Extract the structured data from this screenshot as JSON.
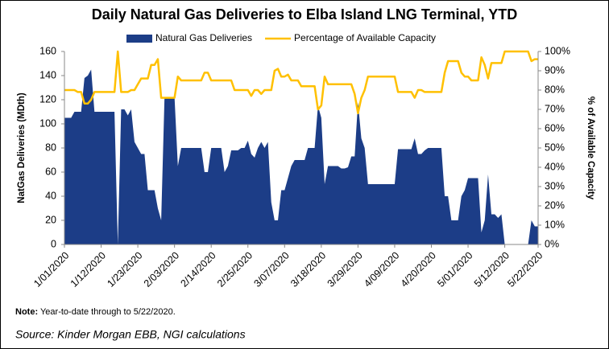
{
  "chart_data": {
    "type": "area-line",
    "title": "Daily Natural Gas Deliveries to Elba Island LNG Terminal, YTD",
    "ylabel": "NatGas Deliveries (MDth)",
    "y2label": "% of Available Capacity",
    "note_label": "Note:",
    "note_text": "Year-to-date through to 5/22/2020.",
    "source": "Source: Kinder Morgan EBB, NGI calculations",
    "categories": [
      "1/01/2020",
      null,
      null,
      null,
      null,
      null,
      null,
      null,
      null,
      null,
      null,
      "1/12/2020",
      null,
      null,
      null,
      null,
      null,
      null,
      null,
      null,
      null,
      null,
      "1/23/2020",
      null,
      null,
      null,
      null,
      null,
      null,
      null,
      null,
      null,
      null,
      "2/03/2020",
      null,
      null,
      null,
      null,
      null,
      null,
      null,
      null,
      null,
      null,
      "2/14/2020",
      null,
      null,
      null,
      null,
      null,
      null,
      null,
      null,
      null,
      null,
      "2/25/2020",
      null,
      null,
      null,
      null,
      null,
      null,
      null,
      null,
      null,
      null,
      "3/07/2020",
      null,
      null,
      null,
      null,
      null,
      null,
      null,
      null,
      null,
      null,
      "3/18/2020",
      null,
      null,
      null,
      null,
      null,
      null,
      null,
      null,
      null,
      null,
      "3/29/2020",
      null,
      null,
      null,
      null,
      null,
      null,
      null,
      null,
      null,
      null,
      "4/09/2020",
      null,
      null,
      null,
      null,
      null,
      null,
      null,
      null,
      null,
      null,
      "4/20/2020",
      null,
      null,
      null,
      null,
      null,
      null,
      null,
      null,
      null,
      null,
      "5/01/2020",
      null,
      null,
      null,
      null,
      null,
      null,
      null,
      null,
      null,
      null,
      "5/12/2020",
      null,
      null,
      null,
      null,
      null,
      null,
      null,
      null,
      null,
      "5/22/2020"
    ],
    "series": [
      {
        "name": "Natural Gas Deliveries",
        "kind": "area",
        "color": "#1c3d87",
        "axis": "y",
        "values": [
          105,
          105,
          105,
          110,
          110,
          110,
          138,
          140,
          145,
          110,
          110,
          110,
          110,
          110,
          110,
          110,
          0,
          112,
          112,
          107,
          112,
          85,
          80,
          75,
          75,
          45,
          45,
          45,
          30,
          20,
          122,
          122,
          122,
          122,
          65,
          80,
          80,
          80,
          80,
          80,
          80,
          80,
          60,
          60,
          80,
          80,
          80,
          80,
          60,
          65,
          78,
          78,
          78,
          80,
          80,
          86,
          75,
          72,
          80,
          85,
          80,
          85,
          35,
          20,
          20,
          45,
          45,
          55,
          65,
          70,
          70,
          70,
          70,
          80,
          80,
          80,
          115,
          105,
          50,
          65,
          65,
          65,
          65,
          63,
          63,
          64,
          73,
          73,
          118,
          88,
          80,
          50,
          50,
          50,
          50,
          50,
          50,
          50,
          50,
          50,
          79,
          79,
          79,
          79,
          79,
          88,
          75,
          75,
          78,
          80,
          80,
          80,
          80,
          80,
          40,
          40,
          20,
          20,
          20,
          40,
          45,
          55,
          55,
          55,
          55,
          10,
          20,
          58,
          25,
          25,
          22,
          25,
          0,
          0,
          0,
          0,
          0,
          0,
          0,
          0,
          20,
          15,
          15
        ]
      },
      {
        "name": "Percentage of Available Capacity",
        "kind": "line",
        "color": "#ffc000",
        "axis": "y2",
        "values": [
          80,
          80,
          80,
          80,
          79,
          79,
          73,
          73,
          75,
          79,
          79,
          79,
          79,
          79,
          79,
          79,
          100,
          79,
          79,
          79,
          80,
          80,
          83,
          86,
          86,
          86,
          93,
          93,
          96,
          76,
          76,
          76,
          76,
          76,
          87,
          85,
          85,
          85,
          85,
          85,
          85,
          85,
          89,
          89,
          85,
          85,
          85,
          85,
          85,
          85,
          85,
          80,
          80,
          80,
          80,
          80,
          77,
          80,
          80,
          78,
          80,
          80,
          80,
          90,
          91,
          87,
          87,
          88,
          85,
          85,
          85,
          82,
          82,
          82,
          82,
          82,
          70,
          72,
          87,
          83,
          83,
          83,
          83,
          83,
          83,
          83,
          83,
          78,
          68,
          76,
          80,
          87,
          87,
          87,
          87,
          87,
          87,
          87,
          87,
          87,
          79,
          79,
          79,
          79,
          79,
          76,
          80,
          80,
          79,
          79,
          79,
          79,
          79,
          79,
          89,
          95,
          95,
          95,
          95,
          89,
          87,
          87,
          85,
          85,
          85,
          97,
          93,
          86,
          94,
          94,
          94,
          94,
          100,
          100,
          100,
          100,
          100,
          100,
          100,
          100,
          95,
          96,
          96
        ]
      }
    ],
    "ylim": [
      0,
      160
    ],
    "yticks": [
      0,
      20,
      40,
      60,
      80,
      100,
      120,
      140,
      160
    ],
    "y2lim": [
      0,
      100
    ],
    "y2ticks": [
      {
        "value": 0,
        "label": "0%"
      },
      {
        "value": 10,
        "label": "10%"
      },
      {
        "value": 20,
        "label": "20%"
      },
      {
        "value": 30,
        "label": "30%"
      },
      {
        "value": 40,
        "label": "40%"
      },
      {
        "value": 50,
        "label": "50%"
      },
      {
        "value": 60,
        "label": "60%"
      },
      {
        "value": 70,
        "label": "70%"
      },
      {
        "value": 80,
        "label": "80%"
      },
      {
        "value": 90,
        "label": "90%"
      },
      {
        "value": 100,
        "label": "100%"
      }
    ],
    "grid": false,
    "legend": "top"
  }
}
